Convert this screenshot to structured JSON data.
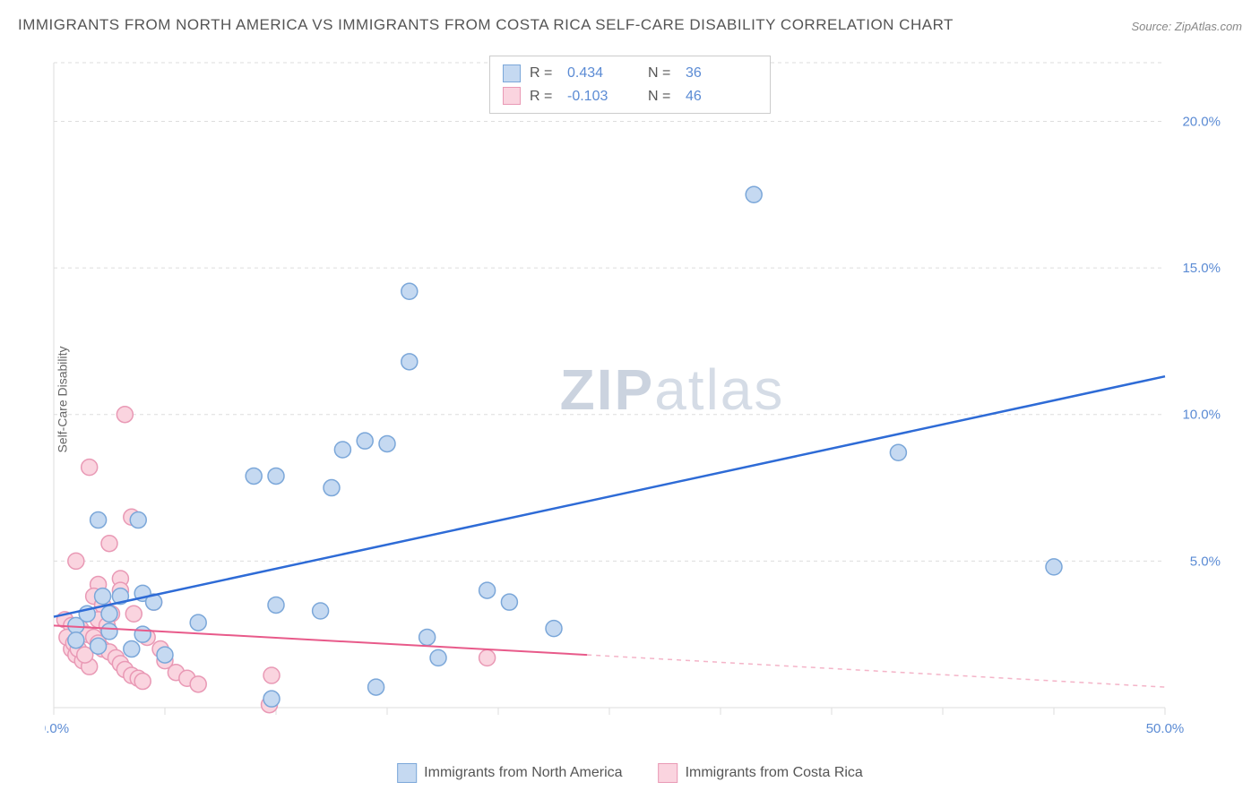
{
  "title": "IMMIGRANTS FROM NORTH AMERICA VS IMMIGRANTS FROM COSTA RICA SELF-CARE DISABILITY CORRELATION CHART",
  "source": "Source: ZipAtlas.com",
  "ylabel": "Self-Care Disability",
  "watermark_a": "ZIP",
  "watermark_b": "atlas",
  "chart": {
    "type": "scatter",
    "background_color": "#ffffff",
    "grid_color": "#dddddd",
    "xlim": [
      0,
      50
    ],
    "ylim": [
      0,
      22
    ],
    "x_ticks": [
      0,
      5,
      10,
      15,
      20,
      25,
      30,
      35,
      40,
      45,
      50
    ],
    "x_tick_labels": [
      "0.0%",
      "",
      "",
      "",
      "",
      "",
      "",
      "",
      "",
      "",
      "50.0%"
    ],
    "y_ticks": [
      5,
      10,
      15,
      20
    ],
    "y_tick_labels": [
      "5.0%",
      "10.0%",
      "15.0%",
      "20.0%"
    ],
    "marker_radius": 9,
    "series": [
      {
        "name": "Immigrants from North America",
        "color_fill": "#c5d9f1",
        "color_stroke": "#7ba7d9",
        "trend_color": "#2e6bd6",
        "trend_width": 2.5,
        "R": "0.434",
        "N": "36",
        "trend": {
          "x1": 0,
          "y1": 3.1,
          "x2": 50,
          "y2": 11.3
        },
        "points": [
          [
            31.5,
            17.5
          ],
          [
            16.0,
            14.2
          ],
          [
            16.0,
            11.8
          ],
          [
            38.0,
            8.7
          ],
          [
            14.0,
            9.1
          ],
          [
            15.0,
            9.0
          ],
          [
            13.0,
            8.8
          ],
          [
            9.0,
            7.9
          ],
          [
            10.0,
            7.9
          ],
          [
            12.5,
            7.5
          ],
          [
            45.0,
            4.8
          ],
          [
            19.5,
            4.0
          ],
          [
            2.0,
            6.4
          ],
          [
            3.8,
            6.4
          ],
          [
            2.2,
            3.8
          ],
          [
            3.0,
            3.8
          ],
          [
            4.0,
            3.9
          ],
          [
            4.5,
            3.6
          ],
          [
            10.0,
            3.5
          ],
          [
            12.0,
            3.3
          ],
          [
            6.5,
            2.9
          ],
          [
            1.0,
            2.8
          ],
          [
            2.5,
            2.6
          ],
          [
            4.0,
            2.5
          ],
          [
            20.5,
            3.6
          ],
          [
            22.5,
            2.7
          ],
          [
            16.8,
            2.4
          ],
          [
            17.3,
            1.7
          ],
          [
            14.5,
            0.7
          ],
          [
            9.8,
            0.3
          ],
          [
            1.5,
            3.2
          ],
          [
            2.5,
            3.2
          ],
          [
            1.0,
            2.3
          ],
          [
            2.0,
            2.1
          ],
          [
            3.5,
            2.0
          ],
          [
            5.0,
            1.8
          ]
        ]
      },
      {
        "name": "Immigrants from Costa Rica",
        "color_fill": "#fad4df",
        "color_stroke": "#e999b5",
        "trend_color": "#e85a8a",
        "trend_width": 2,
        "R": "-0.103",
        "N": "46",
        "trend_solid": {
          "x1": 0,
          "y1": 2.8,
          "x2": 24,
          "y2": 1.8
        },
        "trend_dash": {
          "x1": 24,
          "y1": 1.8,
          "x2": 50,
          "y2": 0.7
        },
        "points": [
          [
            3.2,
            10.0
          ],
          [
            1.6,
            8.2
          ],
          [
            3.5,
            6.5
          ],
          [
            1.0,
            5.0
          ],
          [
            2.5,
            5.6
          ],
          [
            3.0,
            4.4
          ],
          [
            2.0,
            4.2
          ],
          [
            0.5,
            3.0
          ],
          [
            0.8,
            2.8
          ],
          [
            1.2,
            2.7
          ],
          [
            1.5,
            2.5
          ],
          [
            1.8,
            2.4
          ],
          [
            2.0,
            2.2
          ],
          [
            2.2,
            2.0
          ],
          [
            2.5,
            1.9
          ],
          [
            2.8,
            1.7
          ],
          [
            3.0,
            1.5
          ],
          [
            3.2,
            1.3
          ],
          [
            3.5,
            1.1
          ],
          [
            3.8,
            1.0
          ],
          [
            4.0,
            0.9
          ],
          [
            4.5,
            3.6
          ],
          [
            5.0,
            1.6
          ],
          [
            5.5,
            1.2
          ],
          [
            6.0,
            1.0
          ],
          [
            6.5,
            0.8
          ],
          [
            9.8,
            1.1
          ],
          [
            19.5,
            1.7
          ],
          [
            9.7,
            0.1
          ],
          [
            1.8,
            3.8
          ],
          [
            2.2,
            3.5
          ],
          [
            2.6,
            3.2
          ],
          [
            0.8,
            2.0
          ],
          [
            1.0,
            1.8
          ],
          [
            1.3,
            1.6
          ],
          [
            1.6,
            1.4
          ],
          [
            0.6,
            2.4
          ],
          [
            0.9,
            2.2
          ],
          [
            1.1,
            2.0
          ],
          [
            1.4,
            1.8
          ],
          [
            2.0,
            3.0
          ],
          [
            2.4,
            2.8
          ],
          [
            4.2,
            2.4
          ],
          [
            4.8,
            2.0
          ],
          [
            3.6,
            3.2
          ],
          [
            3.0,
            4.0
          ]
        ]
      }
    ]
  },
  "legend_top": {
    "rows": [
      {
        "swatch": "blue",
        "r_label": "R =",
        "r_val": "0.434",
        "n_label": "N =",
        "n_val": "36"
      },
      {
        "swatch": "pink",
        "r_label": "R =",
        "r_val": "-0.103",
        "n_label": "N =",
        "n_val": "46"
      }
    ]
  },
  "legend_bottom": {
    "items": [
      {
        "swatch": "blue",
        "label": "Immigrants from North America"
      },
      {
        "swatch": "pink",
        "label": "Immigrants from Costa Rica"
      }
    ]
  }
}
